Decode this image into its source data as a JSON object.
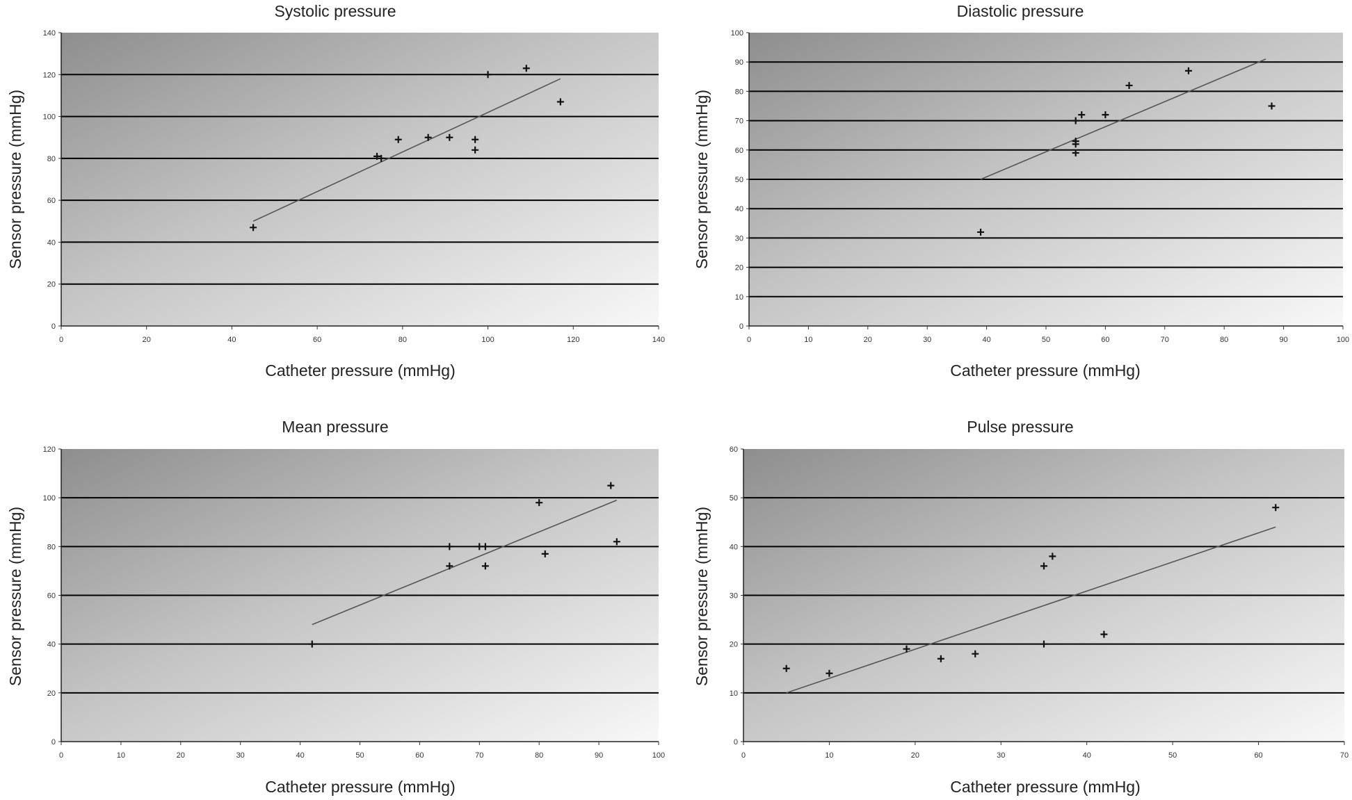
{
  "chart_data": [
    {
      "type": "scatter",
      "title": "Systolic pressure",
      "xlabel": "Catheter pressure (mmHg)",
      "ylabel": "Sensor pressure (mmHg)",
      "xlim": [
        0,
        140
      ],
      "ylim": [
        0,
        140
      ],
      "xticks": [
        0,
        20,
        40,
        60,
        80,
        100,
        120,
        140
      ],
      "yticks": [
        0,
        20,
        40,
        60,
        80,
        100,
        120,
        140
      ],
      "grid": true,
      "points": [
        [
          45,
          47
        ],
        [
          74,
          81
        ],
        [
          75,
          80
        ],
        [
          79,
          89
        ],
        [
          86,
          90
        ],
        [
          91,
          90
        ],
        [
          97,
          89
        ],
        [
          97,
          84
        ],
        [
          100,
          120
        ],
        [
          109,
          123
        ],
        [
          117,
          107
        ]
      ],
      "trendline": [
        [
          45,
          50
        ],
        [
          117,
          118
        ]
      ]
    },
    {
      "type": "scatter",
      "title": "Diastolic pressure",
      "xlabel": "Catheter pressure (mmHg)",
      "ylabel": "Sensor pressure (mmHg)",
      "xlim": [
        0,
        100
      ],
      "ylim": [
        0,
        100
      ],
      "xticks": [
        0,
        10,
        20,
        30,
        40,
        50,
        60,
        70,
        80,
        90,
        100
      ],
      "yticks": [
        0,
        10,
        20,
        30,
        40,
        50,
        60,
        70,
        80,
        90,
        100
      ],
      "grid": true,
      "points": [
        [
          39,
          32
        ],
        [
          55,
          59
        ],
        [
          55,
          62
        ],
        [
          55,
          63
        ],
        [
          55,
          70
        ],
        [
          56,
          72
        ],
        [
          60,
          72
        ],
        [
          64,
          82
        ],
        [
          74,
          87
        ],
        [
          88,
          75
        ]
      ],
      "trendline": [
        [
          39,
          50
        ],
        [
          87,
          91
        ]
      ]
    },
    {
      "type": "scatter",
      "title": "Mean pressure",
      "xlabel": "Catheter pressure (mmHg)",
      "ylabel": "Sensor pressure (mmHg)",
      "xlim": [
        0,
        100
      ],
      "ylim": [
        0,
        120
      ],
      "xticks": [
        0,
        10,
        20,
        30,
        40,
        50,
        60,
        70,
        80,
        90,
        100
      ],
      "yticks": [
        0,
        20,
        40,
        60,
        80,
        100,
        120
      ],
      "grid": true,
      "points": [
        [
          42,
          40
        ],
        [
          65,
          80
        ],
        [
          65,
          72
        ],
        [
          70,
          80
        ],
        [
          71,
          80
        ],
        [
          71,
          72
        ],
        [
          80,
          98
        ],
        [
          81,
          77
        ],
        [
          92,
          105
        ],
        [
          93,
          82
        ]
      ],
      "trendline": [
        [
          42,
          48
        ],
        [
          93,
          99
        ]
      ]
    },
    {
      "type": "scatter",
      "title": "Pulse pressure",
      "xlabel": "Catheter pressure (mmHg)",
      "ylabel": "Sensor pressure (mmHg)",
      "xlim": [
        0,
        70
      ],
      "ylim": [
        0,
        60
      ],
      "xticks": [
        0,
        10,
        20,
        30,
        40,
        50,
        60,
        70
      ],
      "yticks": [
        0,
        10,
        20,
        30,
        40,
        50,
        60
      ],
      "grid": true,
      "points": [
        [
          5,
          15
        ],
        [
          10,
          14
        ],
        [
          19,
          19
        ],
        [
          23,
          17
        ],
        [
          27,
          18
        ],
        [
          35,
          36
        ],
        [
          36,
          38
        ],
        [
          35,
          20
        ],
        [
          42,
          22
        ],
        [
          62,
          48
        ]
      ],
      "trendline": [
        [
          5,
          10
        ],
        [
          62,
          44
        ]
      ]
    }
  ]
}
